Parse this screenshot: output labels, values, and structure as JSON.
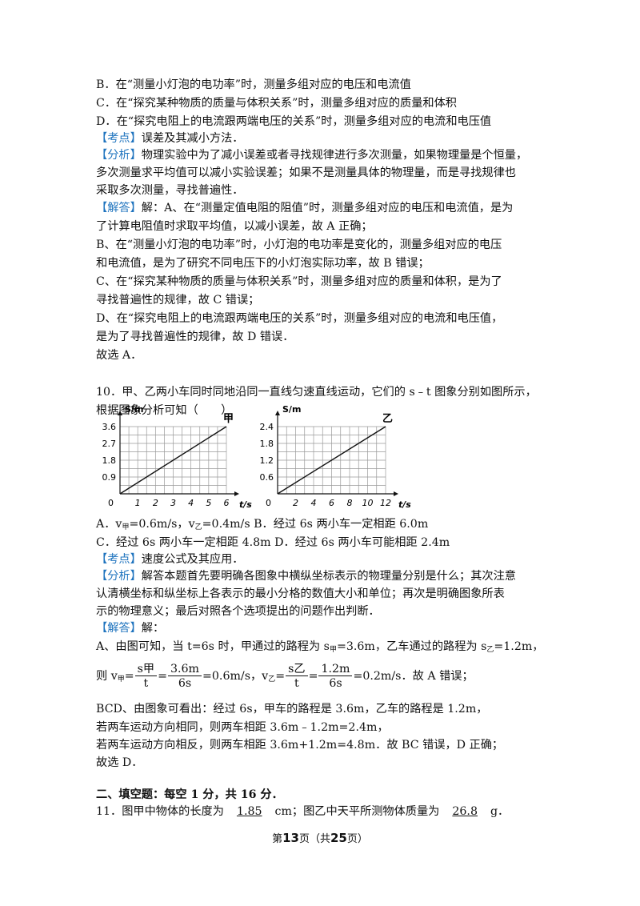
{
  "lines": {
    "l1": "B．在“测量小灯泡的电功率”时，测量多组对应的电压和电流值",
    "l2": "C．在“探究某种物质的质量与体积关系”时，测量多组对应的质量和体积",
    "l3": "D．在“探究电阻上的电流跟两端电压的关系”时，测量多组对应的电流和电压值",
    "l4_tag": "【考点】",
    "l4": "误差及其减小方法．",
    "l5_tag": "【分析】",
    "l5": "物理实验中为了减小误差或者寻找规律进行多次测量，如果物理量是个恒量，",
    "l6": "多次测量求平均值可以减小实验误差；如果不是测量具体的物理量，而是寻找规律也",
    "l7": "采取多次测量，寻找普遍性．",
    "l8_tag": "【解答】",
    "l8": "解：A、在“测量定值电阻的阻值”时，测量多组对应的电压和电流值，是为",
    "l9": "了计算电阻值时求取平均值，以减小误差，故 A 正确；",
    "l10": "B、在“测量小灯泡的电功率”时，小灯泡的电功率是变化的，测量多组对应的电压",
    "l11": "和电流值，是为了研究不同电压下的小灯泡实际功率，故 B 错误；",
    "l12": "C、在“探究某种物质的质量与体积关系”时，测量多组对应的质量和体积，是为了",
    "l13": "寻找普遍性的规律，故 C 错误；",
    "l14": "D、在“探究电阻上的电流跟两端电压的关系”时，测量多组对应的电流和电压值，",
    "l15": "是为了寻找普遍性的规律，故 D 错误．",
    "l16": "故选 A．",
    "q10a": "10．甲、乙两小车同时同地沿同一直线匀速直线运动，它们的 s﹣t 图象分别如图所示，",
    "q10b": "根据图象分析可知（　　）",
    "optA_1": "A．v",
    "optA_s1": "甲",
    "optA_2": "=0.6m/s，v",
    "optA_s2": "乙",
    "optA_3": "=0.4m/s B．经过 6s 两小车一定相距 6.0m",
    "optC": "C．经过 6s 两小车一定相距 4.8m D．经过 6s 两小车可能相距 2.4m",
    "k2_tag": "【考点】",
    "k2": "速度公式及其应用．",
    "f2_tag": "【分析】",
    "f2": "解答本题首先要明确各图象中横纵坐标表示的物理量分别是什么；其次注意",
    "f2b": "认清横坐标和纵坐标上各表示的最小分格的数值大小和单位；再次是明确图象所表",
    "f2c": "示的物理意义；最后对照各个选项提出的问题作出判断．",
    "j2_tag": "【解答】",
    "j2": "解：",
    "a1_1": "A、由图可知，当 t=6s 时，甲通过的路程为 s",
    "a1_s1": "甲",
    "a1_2": "=3.6m，乙车通过的路程为 s",
    "a1_s2": "乙",
    "a1_3": "=1.2m，",
    "eq_1": "则 v",
    "eq_s1": "甲",
    "eq_2": "=",
    "eq_f1n": "s甲",
    "eq_f1d": "t",
    "eq_3": "=",
    "eq_f2n": "3.6m",
    "eq_f2d": "6s",
    "eq_4": "=0.6m/s，v",
    "eq_s2": "乙",
    "eq_5": "=",
    "eq_f3n": "s乙",
    "eq_f3d": "t",
    "eq_6": "=",
    "eq_f4n": "1.2m",
    "eq_f4d": "6s",
    "eq_7": "=0.2m/s．故 A 错误；",
    "b1": "BCD、由图象可看出：经过 6s，甲车的路程是 3.6m，乙车的路程是 1.2m，",
    "b2": "若两车运动方向相同，则两车相距 3.6m﹣1.2m=2.4m，",
    "b3": "若两车运动方向相反，则两车相距 3.6m+1.2m=4.8m．故 BC 错误，D 正确；",
    "b4": "故选 D．",
    "sec2": "二、填空题：每空 1 分，共 16 分．",
    "q11_1": "11．图甲中物体的长度为",
    "q11_a1": "1.85",
    "q11_2": "cm；图乙中天平所测物体质量为",
    "q11_a2": "26.8",
    "q11_3": "g．"
  },
  "footer": {
    "p1": "第",
    "page": "13",
    "p2": "页（共",
    "total": "25",
    "p3": "页）"
  },
  "chart_data": [
    {
      "type": "line",
      "title": "甲",
      "ylabel": "S/m",
      "xlabel": "t/s",
      "x": [
        0,
        6
      ],
      "y": [
        0,
        3.6
      ],
      "xticks": [
        "1",
        "2",
        "3",
        "4",
        "5",
        "6"
      ],
      "yticks": [
        "0.9",
        "1.8",
        "2.7",
        "3.6"
      ],
      "origin": "0",
      "xlim": [
        0,
        6
      ],
      "ylim": [
        0,
        3.6
      ],
      "grid": true
    },
    {
      "type": "line",
      "title": "乙",
      "ylabel": "S/m",
      "xlabel": "t/s",
      "x": [
        0,
        12
      ],
      "y": [
        0,
        2.4
      ],
      "xticks": [
        "2",
        "4",
        "6",
        "8",
        "10",
        "12"
      ],
      "yticks": [
        "0.6",
        "1.2",
        "1.8",
        "2.4"
      ],
      "origin": "0",
      "xlim": [
        0,
        12
      ],
      "ylim": [
        0,
        2.4
      ],
      "grid": true
    }
  ]
}
